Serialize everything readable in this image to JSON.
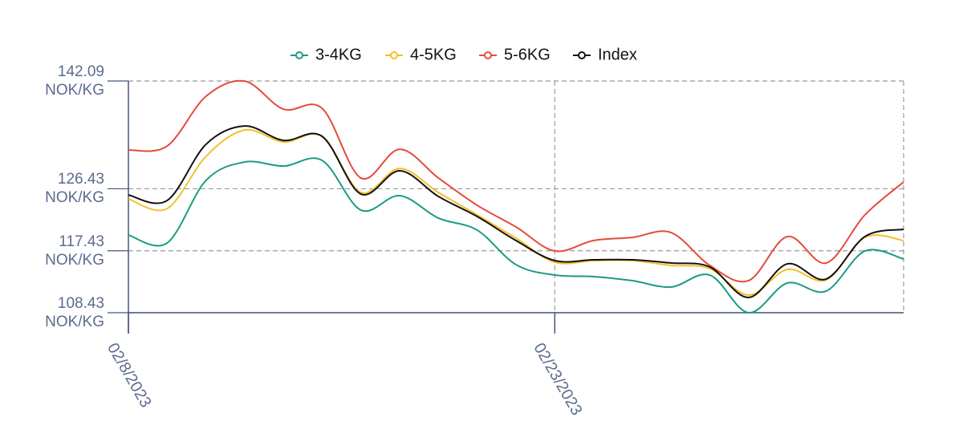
{
  "chart_data": {
    "type": "line",
    "categories": [
      "02/8/2023",
      null,
      null,
      null,
      null,
      null,
      null,
      null,
      null,
      null,
      null,
      "02/23/2023",
      null,
      null,
      null,
      null,
      null,
      null,
      null,
      null,
      null
    ],
    "series": [
      {
        "name": "3-4KG",
        "color": "#1a9b83",
        "values": [
          119.72,
          118.56,
          127.64,
          130.32,
          129.73,
          130.55,
          123.33,
          125.43,
          122.17,
          120.42,
          115.41,
          113.9,
          113.67,
          113.09,
          112.16,
          113.9,
          108.43,
          112.74,
          111.57,
          117.39,
          116.23
        ]
      },
      {
        "name": "4-5KG",
        "color": "#f4bf2a",
        "values": [
          124.96,
          123.56,
          131.13,
          134.97,
          133.23,
          134.04,
          125.89,
          129.38,
          125.89,
          122.63,
          119.26,
          115.76,
          116.0,
          116.0,
          115.3,
          114.83,
          110.99,
          114.72,
          113.2,
          119.38,
          118.91
        ]
      },
      {
        "name": "5-6KG",
        "color": "#e54b3b",
        "values": [
          132.06,
          132.64,
          139.86,
          142.07,
          138.0,
          138.1,
          127.99,
          132.18,
          127.99,
          124.03,
          120.89,
          117.39,
          118.91,
          119.37,
          120.07,
          115.3,
          113.09,
          119.49,
          115.65,
          122.63,
          127.41
        ]
      },
      {
        "name": "Index",
        "color": "#111111",
        "values": [
          125.54,
          124.73,
          132.88,
          135.55,
          133.46,
          134.04,
          125.66,
          129.04,
          125.31,
          122.4,
          118.91,
          116.0,
          116.11,
          116.11,
          115.65,
          115.07,
          110.64,
          115.53,
          113.32,
          119.49,
          120.54
        ]
      }
    ],
    "ylim": [
      108.43,
      142.09
    ],
    "yticks": [
      {
        "value": 108.43,
        "label": "108.43 NOK/KG"
      },
      {
        "value": 117.43,
        "label": "117.43 NOK/KG"
      },
      {
        "value": 126.43,
        "label": "126.43 NOK/KG"
      },
      {
        "value": 142.09,
        "label": "142.09 NOK/KG"
      }
    ],
    "grid": true,
    "legend": "top"
  }
}
